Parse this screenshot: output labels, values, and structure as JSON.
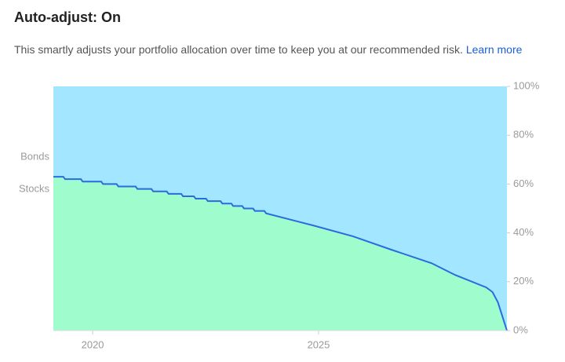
{
  "header": {
    "title": "Auto-adjust: On",
    "description": "This smartly adjusts your portfolio allocation over time to keep you at our recommended risk.",
    "link": "Learn more"
  },
  "chart_data": {
    "type": "area",
    "labels": [
      {
        "name": "Bonds",
        "color": "#a2e6ff"
      },
      {
        "name": "Stocks",
        "color": "#9efccd"
      }
    ],
    "line_color": "#2a6ce0",
    "x": [
      2019.13,
      2019.35,
      2019.39,
      2019.74,
      2019.78,
      2020.19,
      2020.23,
      2020.53,
      2020.57,
      2020.95,
      2020.99,
      2021.3,
      2021.34,
      2021.64,
      2021.68,
      2021.96,
      2022.0,
      2022.24,
      2022.28,
      2022.51,
      2022.55,
      2022.83,
      2022.87,
      2023.07,
      2023.11,
      2023.31,
      2023.35,
      2023.55,
      2023.59,
      2023.8,
      2023.84,
      2024.89,
      2025.76,
      2026.63,
      2027.5,
      2028.02,
      2028.71,
      2028.85,
      2028.97,
      2029.17
    ],
    "series": [
      {
        "name": "Stocks",
        "values": [
          63,
          63,
          62,
          62,
          61,
          61,
          60,
          60,
          59,
          59,
          58,
          58,
          57,
          57,
          56,
          56,
          55,
          55,
          54,
          54,
          53,
          53,
          52,
          52,
          51,
          51,
          50,
          50,
          49,
          49,
          48,
          43,
          38.6,
          33,
          27.6,
          22.8,
          17.7,
          15.8,
          11.6,
          0
        ]
      }
    ],
    "xlim": [
      2019.13,
      2029.17
    ],
    "xticks": [
      2020,
      2025
    ],
    "ylim": [
      0,
      100
    ],
    "yticks": [
      {
        "value": 0,
        "label": "0%"
      },
      {
        "value": 20,
        "label": "20%"
      },
      {
        "value": 40,
        "label": "40%"
      },
      {
        "value": 60,
        "label": "60%"
      },
      {
        "value": 80,
        "label": "80%"
      },
      {
        "value": 100,
        "label": "100%"
      }
    ]
  }
}
